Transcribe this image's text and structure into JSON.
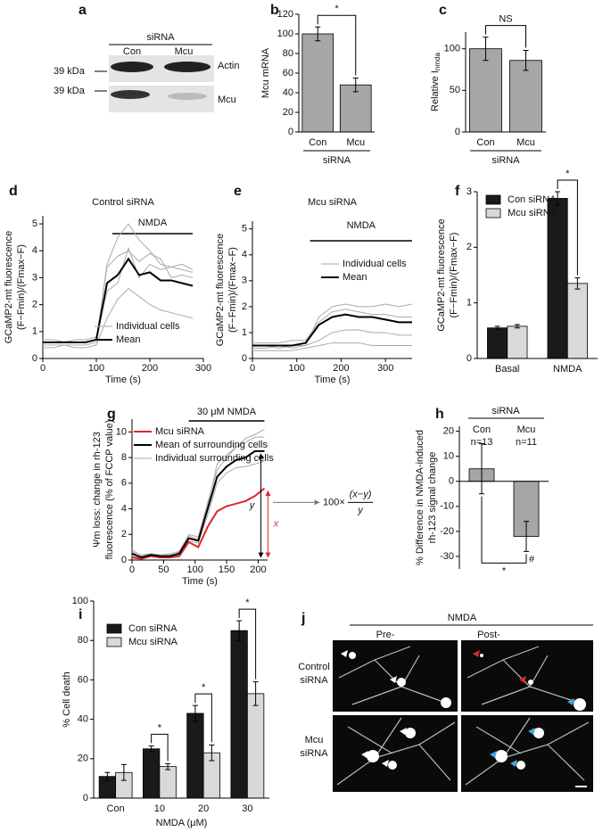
{
  "blot": {
    "panel": "a",
    "group_label": "siRNA",
    "lanes": [
      "Con",
      "Mcu"
    ],
    "markers": [
      "39 kDa",
      "39 kDa"
    ],
    "bands": [
      "Actin",
      "Mcu"
    ]
  },
  "image_panel": {
    "panel": "j",
    "stimulus": "NMDA",
    "columns": [
      "Pre-",
      "Post-"
    ],
    "rows": [
      [
        "Control",
        "siRNA"
      ],
      [
        "Mcu",
        "siRNA"
      ]
    ]
  },
  "chart_data": [
    {
      "panel": "b",
      "type": "bar",
      "ylabel": [
        "Mcu mRNA"
      ],
      "categories": [
        "Con",
        "Mcu"
      ],
      "values": [
        100,
        48
      ],
      "errors": [
        7,
        7
      ],
      "color": "#a6a6a6",
      "ylim": [
        0,
        120
      ],
      "yticks": [
        0,
        20,
        40,
        60,
        80,
        100,
        120
      ],
      "group_label": "siRNA",
      "significance": "*"
    },
    {
      "panel": "c",
      "type": "bar",
      "ylabel": [
        "Relative I"
      ],
      "ylabel_subscript": "nmda",
      "categories": [
        "Con",
        "Mcu"
      ],
      "values": [
        100,
        86
      ],
      "errors": [
        14,
        12
      ],
      "color": "#a6a6a6",
      "ylim": [
        0,
        120
      ],
      "yticks": [
        0,
        50,
        100
      ],
      "group_label": "siRNA",
      "significance": "NS"
    },
    {
      "panel": "d",
      "type": "line",
      "title": "Control siRNA",
      "ylabel": [
        "GCaMP2-mt fluorescence",
        "(F−Fmin)/(Fmax−F)"
      ],
      "xlabel": "Time (s)",
      "x": [
        0,
        20,
        40,
        60,
        80,
        100,
        120,
        140,
        160,
        180,
        200,
        220,
        240,
        260,
        280
      ],
      "series": [
        {
          "name": "Individual cells",
          "color": "#aaaaaa",
          "values": [
            [
              0.5,
              0.5,
              0.5,
              0.5,
              0.5,
              0.6,
              3.5,
              4.5,
              5.0,
              4.4,
              4.0,
              3.5,
              3.4,
              3.3,
              3.2
            ],
            [
              0.7,
              0.7,
              0.6,
              0.7,
              0.7,
              0.8,
              2.5,
              2.8,
              4.1,
              3.0,
              3.5,
              3.3,
              3.4,
              3.5,
              3.3
            ],
            [
              0.4,
              0.4,
              0.5,
              0.4,
              0.4,
              0.5,
              1.5,
              2.2,
              2.6,
              2.3,
              2.0,
              1.8,
              1.7,
              1.6,
              1.5
            ],
            [
              0.6,
              0.6,
              0.6,
              0.6,
              0.6,
              0.7,
              3.4,
              3.8,
              4.0,
              3.6,
              3.9,
              3.7,
              3.0,
              3.1,
              3.0
            ]
          ]
        },
        {
          "name": "Mean",
          "color": "#000000",
          "values": [
            0.6,
            0.6,
            0.6,
            0.6,
            0.6,
            0.7,
            2.8,
            3.1,
            3.7,
            3.1,
            3.2,
            2.9,
            2.9,
            2.8,
            2.7
          ]
        }
      ],
      "stimulus": {
        "label": "NMDA",
        "start": 130,
        "end": 280
      },
      "xlim": [
        0,
        300
      ],
      "ylim": [
        0,
        5.3
      ],
      "xticks": [
        0,
        100,
        200,
        300
      ],
      "yticks": [
        0,
        1,
        2,
        3,
        4,
        5
      ]
    },
    {
      "panel": "e",
      "type": "line",
      "title": "Mcu siRNA",
      "ylabel": [
        "GCaMP2-mt fluorescence",
        "(F−Fmin)/(Fmax−F)"
      ],
      "xlabel": "Time (s)",
      "x": [
        0,
        30,
        60,
        90,
        120,
        150,
        180,
        210,
        240,
        270,
        300,
        330,
        360
      ],
      "series": [
        {
          "name": "Individual cells",
          "color": "#aaaaaa",
          "values": [
            [
              0.4,
              0.4,
              0.5,
              0.4,
              0.5,
              1.6,
              2.0,
              2.1,
              2.0,
              2.0,
              2.1,
              2.0,
              2.1
            ],
            [
              0.6,
              0.6,
              0.6,
              0.7,
              0.7,
              1.4,
              1.8,
              1.9,
              1.8,
              1.7,
              1.7,
              1.6,
              1.6
            ],
            [
              0.5,
              0.5,
              0.4,
              0.5,
              0.5,
              0.7,
              1.0,
              1.1,
              1.1,
              1.0,
              1.0,
              0.9,
              0.9
            ],
            [
              0.3,
              0.3,
              0.3,
              0.3,
              0.4,
              0.5,
              0.6,
              0.6,
              0.6,
              0.5,
              0.5,
              0.5,
              0.5
            ]
          ]
        },
        {
          "name": "Mean",
          "color": "#000000",
          "values": [
            0.5,
            0.5,
            0.5,
            0.5,
            0.6,
            1.3,
            1.6,
            1.7,
            1.6,
            1.6,
            1.5,
            1.4,
            1.4
          ]
        }
      ],
      "stimulus": {
        "label": "NMDA",
        "start": 130,
        "end": 360
      },
      "xlim": [
        0,
        360
      ],
      "ylim": [
        0,
        5.3
      ],
      "xticks": [
        0,
        100,
        200,
        300
      ],
      "yticks": [
        0,
        1,
        2,
        3,
        4,
        5
      ]
    },
    {
      "panel": "f",
      "type": "bar",
      "ylabel": [
        "GCaMP2-mt fluorescence",
        "(F−Fmin)/(Fmax−F)"
      ],
      "categories": [
        "Basal",
        "NMDA"
      ],
      "series": [
        {
          "name": "Con siRNA",
          "color": "#1a1a1a",
          "values": [
            0.55,
            2.88
          ],
          "errors": [
            0.03,
            0.12
          ]
        },
        {
          "name": "Mcu siRNA",
          "color": "#d9d9d9",
          "values": [
            0.58,
            1.35
          ],
          "errors": [
            0.03,
            0.1
          ]
        }
      ],
      "ylim": [
        0,
        3
      ],
      "yticks": [
        0,
        1,
        2,
        3
      ],
      "significance": [
        null,
        "*"
      ]
    },
    {
      "panel": "g",
      "type": "line",
      "ylabel": [
        "Ψm loss: change in rh-123",
        "fluorescence (% of FCCP value)"
      ],
      "xlabel": "Time (s)",
      "x": [
        0,
        15,
        30,
        45,
        60,
        75,
        90,
        105,
        120,
        135,
        150,
        165,
        180,
        195,
        210
      ],
      "series": [
        {
          "name": "Mcu siRNA",
          "color": "#e0262b",
          "values": [
            0.2,
            0.1,
            0.3,
            0.2,
            0.2,
            0.3,
            1.4,
            1.0,
            2.6,
            3.8,
            4.2,
            4.4,
            4.6,
            5.0,
            5.6
          ]
        },
        {
          "name": "Mean of surrounding cells",
          "color": "#000000",
          "values": [
            0.5,
            0.2,
            0.4,
            0.3,
            0.3,
            0.5,
            1.7,
            1.5,
            4.0,
            6.5,
            7.3,
            7.8,
            8.0,
            8.5,
            8.5
          ]
        },
        {
          "name": "Individual surrounding cells",
          "color": "#aaaaaa",
          "values": [
            [
              0.8,
              0.3,
              0.5,
              0.4,
              0.4,
              0.7,
              2.0,
              1.8,
              4.5,
              7.0,
              8.0,
              8.8,
              9.5,
              9.8,
              10.2
            ],
            [
              0.3,
              0.2,
              0.3,
              0.2,
              0.3,
              0.4,
              1.5,
              1.3,
              3.5,
              6.0,
              6.8,
              7.2,
              7.3,
              7.5,
              7.7
            ],
            [
              0.6,
              0.4,
              0.5,
              0.4,
              0.5,
              0.6,
              1.9,
              1.6,
              4.2,
              7.5,
              8.2,
              8.8,
              9.2,
              9.6,
              9.6
            ]
          ]
        }
      ],
      "stimulus": {
        "label": "30 μM NMDA",
        "start": 90,
        "end": 210
      },
      "xlim": [
        0,
        215
      ],
      "ylim": [
        0,
        11
      ],
      "xticks": [
        0,
        50,
        100,
        150,
        200
      ],
      "yticks": [
        0,
        2,
        4,
        6,
        8,
        10
      ],
      "annotations": {
        "y_marker": "y",
        "x_marker": "x",
        "formula_prefix": "100×",
        "formula_numerator": "(x−y)",
        "formula_denominator": "y"
      }
    },
    {
      "panel": "h",
      "type": "bar",
      "ylabel": [
        "% Difference in NMDA-induced",
        "rh-123 signal change"
      ],
      "group_label": "siRNA",
      "categories": [
        "Con",
        "Mcu"
      ],
      "n_labels": [
        "n=13",
        "n=11"
      ],
      "values": [
        5,
        -22
      ],
      "errors": [
        10,
        6
      ],
      "color": "#a6a6a6",
      "ylim": [
        -35,
        22
      ],
      "yticks": [
        -30,
        -20,
        -10,
        0,
        10,
        20
      ],
      "significance": "*",
      "marker": "#"
    },
    {
      "panel": "i",
      "type": "bar",
      "ylabel": [
        "% Cell death"
      ],
      "xlabel": "NMDA (μM)",
      "categories": [
        "Con",
        "10",
        "20",
        "30"
      ],
      "series": [
        {
          "name": "Con siRNA",
          "color": "#1a1a1a",
          "values": [
            11,
            25,
            43,
            85
          ],
          "errors": [
            2,
            1.5,
            4,
            5
          ]
        },
        {
          "name": "Mcu siRNA",
          "color": "#d9d9d9",
          "values": [
            13,
            16,
            23,
            53
          ],
          "errors": [
            4,
            1.5,
            4,
            6
          ]
        }
      ],
      "ylim": [
        0,
        100
      ],
      "yticks": [
        0,
        20,
        40,
        60,
        80,
        100
      ],
      "significance": [
        null,
        "*",
        "*",
        "*"
      ]
    }
  ]
}
